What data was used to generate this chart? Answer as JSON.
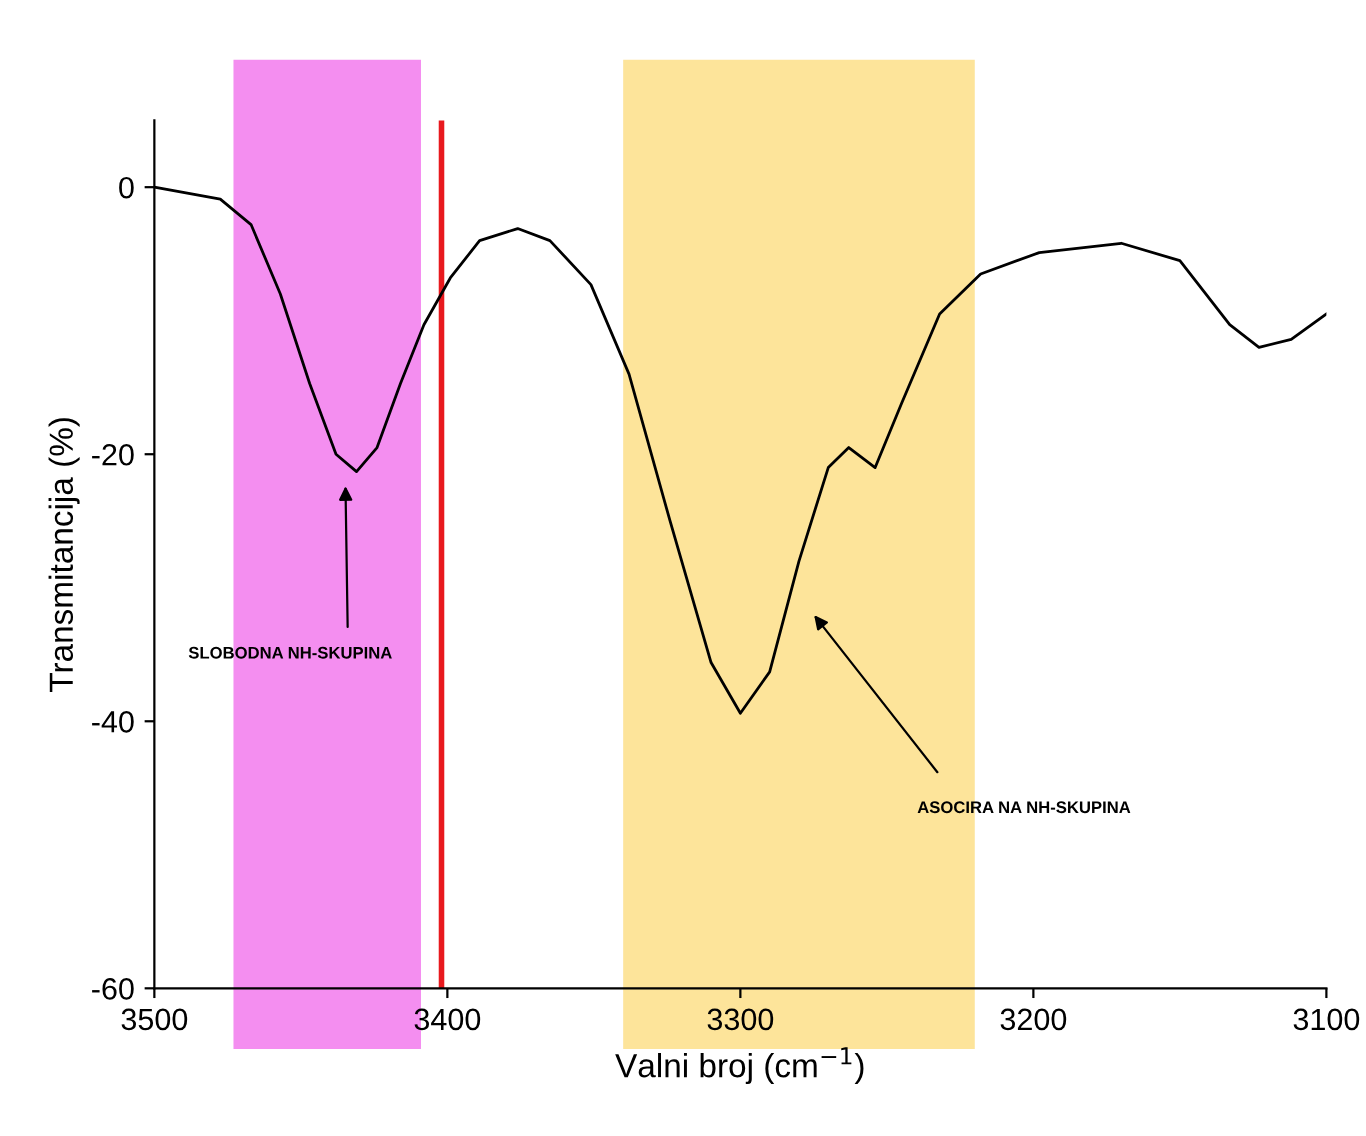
{
  "chart_data": {
    "type": "line",
    "xlabel": "Valni broj (cm$^{−1}$)",
    "ylabel": "Transmitancija (%)",
    "xlim": [
      3500,
      3100
    ],
    "xticks": [
      3500,
      3400,
      3300,
      3200,
      3100
    ],
    "ylim": [
      -60,
      5
    ],
    "yticks": [
      0,
      -20,
      -40,
      -60
    ],
    "grid": false,
    "legend": false,
    "marker": "none",
    "line_style": "solid",
    "series": [
      {
        "color": "#000000",
        "x": [
          3500,
          3477.5,
          3467,
          3457,
          3447,
          3438,
          3431,
          3424,
          3416,
          3408,
          3399,
          3389,
          3376,
          3365,
          3351,
          3338,
          3324,
          3310,
          3300,
          3290,
          3280,
          3270,
          3263,
          3254,
          3245,
          3232,
          3218,
          3198,
          3170,
          3150,
          3133,
          3123,
          3112,
          3100
        ],
        "values": [
          0,
          -0.9,
          -2.8,
          -8,
          -14.7,
          -20,
          -21.3,
          -19.5,
          -14.7,
          -10.3,
          -6.8,
          -4,
          -3.1,
          -4,
          -7.3,
          -14,
          -25,
          -35.6,
          -39.4,
          -36.3,
          -28,
          -21,
          -19.5,
          -21,
          -16.2,
          -9.5,
          -6.5,
          -4.9,
          -4.2,
          -5.5,
          -10.3,
          -12,
          -11.4,
          -9.5
        ]
      }
    ],
    "bands": [
      {
        "axis": "x",
        "from": 3473,
        "to": 3409,
        "color": "#f48ef0"
      },
      {
        "axis": "x",
        "from": 3340,
        "to": 3220,
        "color": "#fde49a"
      }
    ],
    "ref_lines": [
      {
        "axis": "x",
        "value": 3402,
        "color": "#e8191e",
        "line_style": "solid"
      }
    ],
    "annotations": [
      "SLOBODNA NH-SKUPINA",
      "ASOCIRA NA NH-SKUPINA"
    ]
  }
}
